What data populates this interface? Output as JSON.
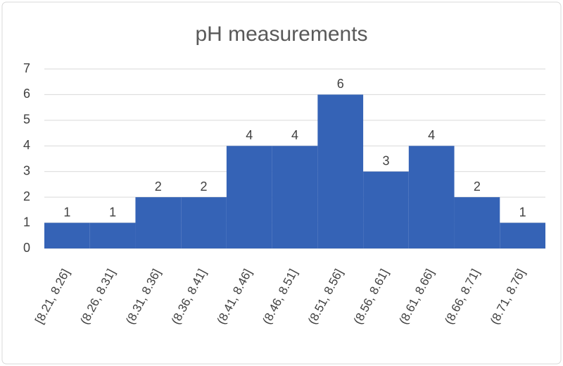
{
  "chart_data": {
    "type": "bar",
    "title": "pH measurements",
    "categories": [
      "[8.21, 8.26]",
      "(8.26, 8.31]",
      "(8.31, 8.36]",
      "(8.36, 8.41]",
      "(8.41, 8.46]",
      "(8.46, 8.51]",
      "(8.51, 8.56]",
      "(8.56, 8.61]",
      "(8.61, 8.66]",
      "(8.66, 8.71]",
      "(8.71, 8.76]"
    ],
    "values": [
      1,
      1,
      2,
      2,
      4,
      4,
      6,
      3,
      4,
      2,
      1
    ],
    "color": "#3563b6",
    "ylim": [
      0,
      7
    ],
    "yticks": [
      0,
      1,
      2,
      3,
      4,
      5,
      6,
      7
    ],
    "grid": true
  }
}
